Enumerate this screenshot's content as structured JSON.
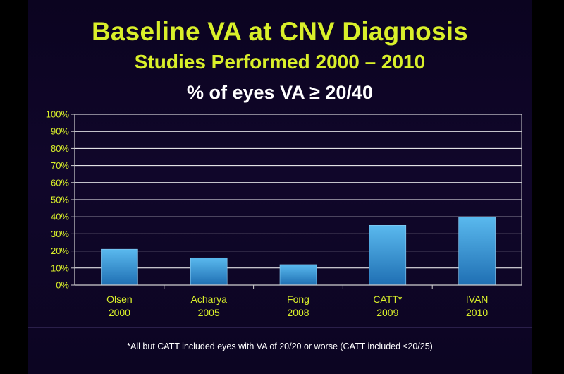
{
  "chart_data": {
    "type": "bar",
    "title": "Baseline VA at CNV Diagnosis",
    "subtitle": "Studies Performed 2000 – 2010",
    "ylabel": "% of eyes VA ≥ 20/40",
    "categories": [
      [
        "Olsen",
        "2000"
      ],
      [
        "Acharya",
        "2005"
      ],
      [
        "Fong",
        "2008"
      ],
      [
        "CATT*",
        "2009"
      ],
      [
        "IVAN",
        "2010"
      ]
    ],
    "values": [
      21,
      16,
      12,
      35,
      40
    ],
    "ylim": [
      0,
      100
    ],
    "yticks": [
      "0%",
      "10%",
      "20%",
      "30%",
      "40%",
      "50%",
      "60%",
      "70%",
      "80%",
      "90%",
      "100%"
    ],
    "grid": true,
    "colors": {
      "bar_top": "#5ab9ee",
      "bar_bottom": "#1f6fb3",
      "text": "#d9ef2a",
      "axis": "#d0d0d0",
      "grid": "#ffffff"
    }
  },
  "footnote": "*All but CATT included eyes with VA of 20/20 or worse (CATT included ≤20/25)"
}
